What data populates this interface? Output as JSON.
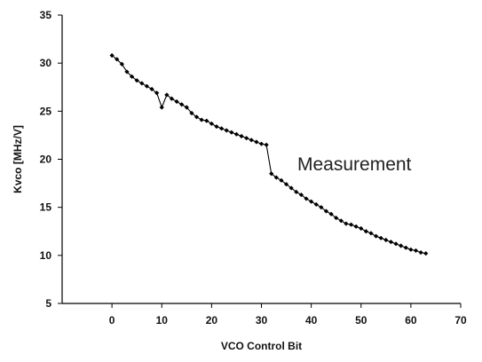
{
  "chart_data": {
    "type": "line",
    "title": "",
    "xlabel": "VCO Control Bit",
    "ylabel": "Kvco [MHz/V]",
    "xlim": [
      -10,
      70
    ],
    "ylim": [
      5,
      35
    ],
    "x_ticks": [
      0,
      10,
      20,
      30,
      40,
      50,
      60,
      70
    ],
    "y_ticks": [
      5,
      10,
      15,
      20,
      25,
      30,
      35
    ],
    "grid": false,
    "legend": "none",
    "annotation": "Measurement",
    "series": [
      {
        "x": [
          0,
          1,
          2,
          3,
          4,
          5,
          6,
          7,
          8,
          9,
          10,
          11,
          12,
          13,
          14,
          15,
          16,
          17,
          18,
          19,
          20,
          21,
          22,
          23,
          24,
          25,
          26,
          27,
          28,
          29,
          30,
          31,
          32,
          33,
          34,
          35,
          36,
          37,
          38,
          39,
          40,
          41,
          42,
          43,
          44,
          45,
          46,
          47,
          48,
          49,
          50,
          51,
          52,
          53,
          54,
          55,
          56,
          57,
          58,
          59,
          60,
          61,
          62,
          63
        ],
        "values": [
          30.8,
          30.4,
          29.9,
          29.1,
          28.6,
          28.2,
          27.9,
          27.6,
          27.3,
          26.9,
          25.4,
          26.7,
          26.3,
          26.0,
          25.7,
          25.4,
          24.8,
          24.4,
          24.1,
          24.0,
          23.7,
          23.4,
          23.2,
          23.0,
          22.8,
          22.6,
          22.4,
          22.2,
          22.0,
          21.8,
          21.6,
          21.5,
          18.5,
          18.1,
          17.8,
          17.4,
          17.0,
          16.6,
          16.3,
          15.9,
          15.6,
          15.3,
          15.0,
          14.6,
          14.3,
          13.9,
          13.6,
          13.3,
          13.2,
          13.0,
          12.8,
          12.5,
          12.3,
          12.0,
          11.8,
          11.6,
          11.4,
          11.2,
          11.0,
          10.8,
          10.6,
          10.5,
          10.3,
          10.2
        ]
      }
    ]
  }
}
